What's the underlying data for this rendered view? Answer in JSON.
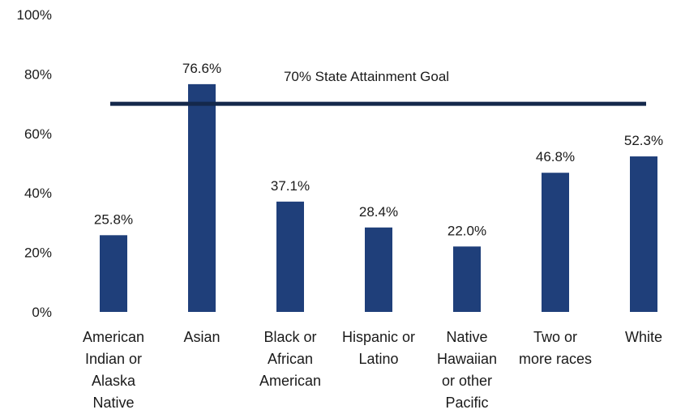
{
  "chart_data": {
    "type": "bar",
    "title": "",
    "xlabel": "",
    "ylabel": "",
    "ylim": [
      0,
      100
    ],
    "yticks": [
      0,
      20,
      40,
      60,
      80,
      100
    ],
    "ytick_labels": [
      "0%",
      "20%",
      "40%",
      "60%",
      "80%",
      "100%"
    ],
    "grid": false,
    "categories": [
      [
        "American",
        "Indian or",
        "Alaska",
        "Native"
      ],
      [
        "Asian"
      ],
      [
        "Black or",
        "African",
        "American"
      ],
      [
        "Hispanic or",
        "Latino"
      ],
      [
        "Native",
        "Hawaiian",
        "or other",
        "Pacific"
      ],
      [
        "Two or",
        "more races"
      ],
      [
        "White"
      ]
    ],
    "values": [
      25.8,
      76.6,
      37.1,
      28.4,
      22.0,
      46.8,
      52.3
    ],
    "data_labels": [
      "25.8%",
      "76.6%",
      "37.1%",
      "28.4%",
      "22.0%",
      "46.8%",
      "52.3%"
    ],
    "reference_line": {
      "label": "70% State Attainment Goal",
      "value": 70
    },
    "colors": {
      "bar": "#1f3f7a",
      "reference_line": "#14284b"
    }
  }
}
